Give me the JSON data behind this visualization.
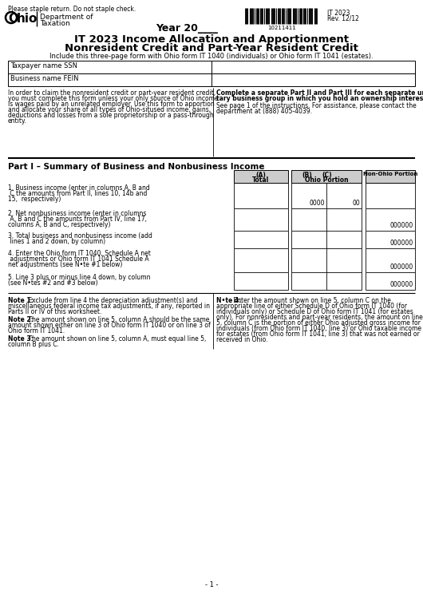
{
  "bg_color": "#ffffff",
  "text_color": "#000000",
  "header_staple": "Please staple return. Do not staple check.",
  "dept_line1": "Department of",
  "dept_line2": "Taxation",
  "year_text": "Year 20____",
  "form_id": "IT 2023",
  "rev": "Rev. 12/12",
  "barcode_number": "10211411",
  "title1": "IT 2023 Income Allocation and Apportionment",
  "title2": "Nonresident Credit and Part-Year Resident Credit",
  "subtitle": "Include this three-page form with Ohio form IT 1040 (individuals) or Ohio form IT 1041 (estates).",
  "field1_label": "Taxpayer name SSN",
  "field2_label": "Business name FEIN",
  "left_para": [
    "In order to claim the nonresident credit or part-year resident credit,",
    "you must complete this form unless your only source of Ohio income",
    "is wages paid by an unrelated employer. Use this form to apportion",
    "and allocate your share of all types of Ohio-sitused income, gains,",
    "deductions and losses from a sole proprietorship or a pass-through",
    "entity."
  ],
  "right_para_bold": [
    "Complete a separate Part II and Part III for each separate uni-",
    "tary business group in which you hold an ownership interest."
  ],
  "right_para_normal": [
    "See page 1 of the instructions. For assistance, please contact the",
    "department at (888) 405-4039."
  ],
  "part1_title": "Part I – Summary of Business and Nonbusiness Income",
  "line1_text": [
    "1. Business income (enter in columns A, B and",
    " C the amounts from Part II, lines 10, 14b and",
    "15,  respectively)"
  ],
  "line2_text": [
    "2. Net nonbusiness income (enter in columns",
    " A, B and C the amounts from Part IV, line 17,",
    "columns A, B and C, respectively)"
  ],
  "line3_text": [
    "3. Total business and nonbusiness income (add",
    " lines 1 and 2 down, by column)"
  ],
  "line4_text": [
    "4. Enter the Ohio form IT 1040, Schedule A net",
    " adjustments or Ohio form IT 1041 Schedule A",
    "net adjustments (see N•te #1 below)"
  ],
  "line5_text": [
    "5. Line 3 plus or minus line 4 down, by column",
    "(see N•tes #2 and #3 below)"
  ],
  "line1_b_val": "0000",
  "line1_c_val": "00",
  "line2_c_val": "000000",
  "line3_c_val": "000000",
  "line4_c_val": "000000",
  "line5_c_val": "000000",
  "note1_bold": "Note 1:",
  "note1_text": [
    " Exclude from line 4 the depreciation adjustment(s) and",
    "miscellaneous federal income tax adjustments, if any, reported in",
    "Parts II or IV of this worksheet."
  ],
  "note2_bold": "Note 2:",
  "note2_text": [
    " The amount shown on line 5, column A should be the same",
    "amount shown either on line 3 of Ohio form IT 1040 or on line 3 of",
    "Ohio form IT 1041."
  ],
  "note3_bold": "Note 3:",
  "note3_text": [
    " The amount shown on line 5, column A, must equal line 5,",
    "column B plus C."
  ],
  "note4_bold": "N•te 4:",
  "note4_text": [
    " Enter the amount shown on line 5, column C on the",
    "appropriate line of either Schedule D of Ohio form IT 1040 (for",
    "individuals only) or Schedule D of Ohio form IT 1041 (for estates",
    "only). For nonresidents and part-year residents, the amount on line",
    "5, column C is the portion of either Ohio adjusted gross income for",
    "individuals (from Ohio form IT 1040, line 3) or Ohio taxable income",
    "for estates (from Ohio form IT 1041, line 3) that was not earned or",
    "received in Ohio."
  ],
  "page_num": "- 1 -"
}
